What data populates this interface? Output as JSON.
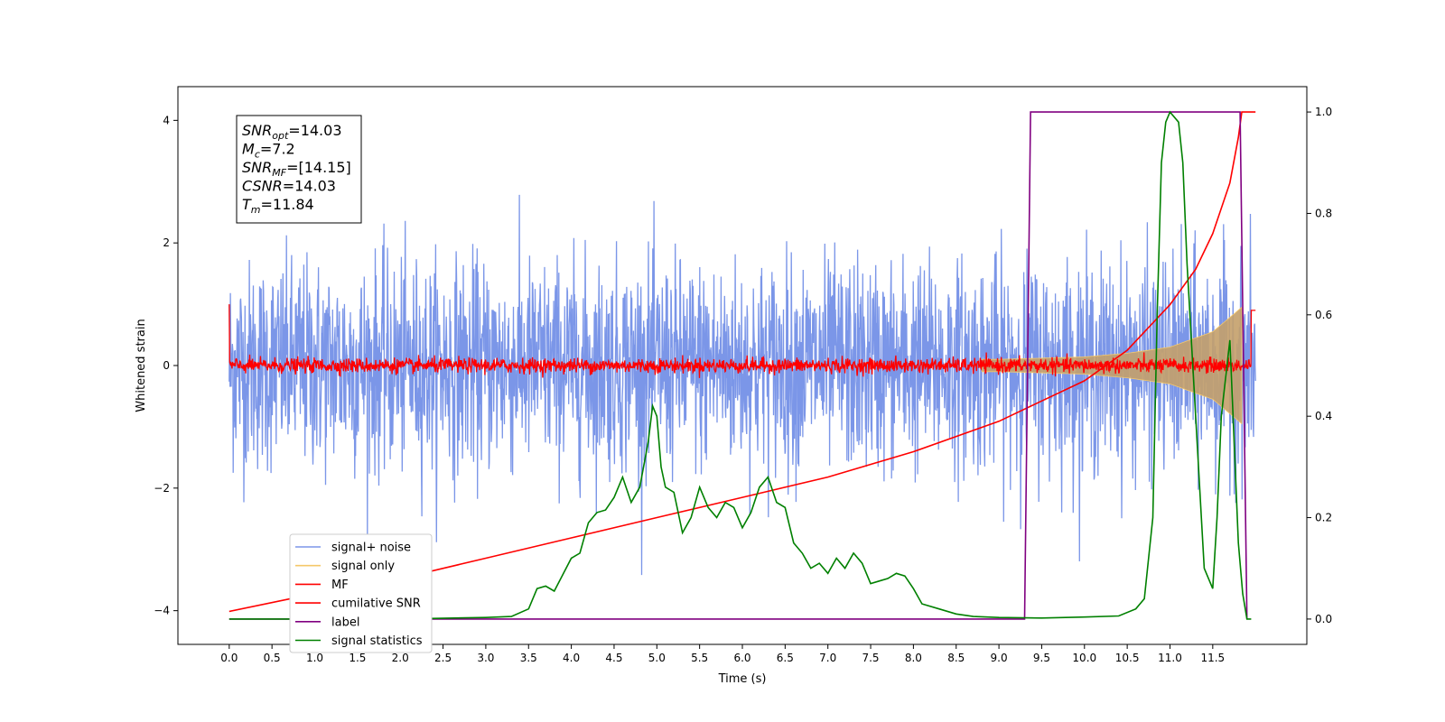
{
  "chart_data": {
    "type": "line",
    "xlabel": "Time (s)",
    "ylabel": "Whitened strain",
    "xlim": [
      -0.6,
      12.6
    ],
    "ylim": [
      -4.55,
      4.55
    ],
    "y2lim": [
      -0.05,
      1.05
    ],
    "xticks": [
      "0.0",
      "0.5",
      "1.0",
      "1.5",
      "2.0",
      "2.5",
      "3.0",
      "3.5",
      "4.0",
      "4.5",
      "5.0",
      "5.5",
      "6.0",
      "6.5",
      "7.0",
      "7.5",
      "8.0",
      "8.5",
      "9.0",
      "9.5",
      "10.0",
      "10.5",
      "11.0",
      "11.5"
    ],
    "yticks": [
      "4",
      "2",
      "0",
      "−2",
      "−4"
    ],
    "y2ticks": [
      "1.0",
      "0.8",
      "0.6",
      "0.4",
      "0.2",
      "0.0"
    ],
    "grid": false,
    "legend_position": "lower-left",
    "annotation": {
      "lines": [
        {
          "sym": "SNR",
          "sub": "opt",
          "val": "=14.03"
        },
        {
          "sym": "M",
          "sub": "c",
          "val": "=7.2"
        },
        {
          "sym": "SNR",
          "sub": "MF",
          "val": "=[14.15]"
        },
        {
          "sym": "CSNR",
          "sub": "",
          "val": "=14.03"
        },
        {
          "sym": "T",
          "sub": "m",
          "val": "=11.84"
        }
      ]
    },
    "series": [
      {
        "name": "signal+ noise",
        "color": "#7b96e8",
        "axis": "left",
        "description_values": {
          "noise_sigma": 0.8,
          "duration": 12.0
        }
      },
      {
        "name": "signal only",
        "color": "#f5c86a",
        "axis": "left",
        "envelope": [
          [
            9.0,
            0.1
          ],
          [
            10.0,
            0.14
          ],
          [
            10.5,
            0.2
          ],
          [
            11.0,
            0.3
          ],
          [
            11.5,
            0.55
          ],
          [
            11.84,
            0.95
          ]
        ]
      },
      {
        "name": "MF",
        "color": "#ff0000",
        "axis": "left",
        "noise_sigma": 0.06
      },
      {
        "name": "cumilative SNR",
        "color": "#ff0000",
        "axis": "right",
        "x": [
          0.0,
          1.0,
          2.0,
          3.0,
          4.0,
          5.0,
          6.0,
          7.0,
          8.0,
          9.0,
          9.5,
          10.0,
          10.5,
          11.0,
          11.3,
          11.5,
          11.7,
          11.8,
          11.84,
          12.0
        ],
        "y": [
          0.015,
          0.05,
          0.08,
          0.12,
          0.16,
          0.2,
          0.24,
          0.28,
          0.33,
          0.39,
          0.43,
          0.47,
          0.53,
          0.62,
          0.69,
          0.76,
          0.86,
          0.95,
          1.0,
          1.0
        ]
      },
      {
        "name": "label",
        "color": "#800080",
        "axis": "right",
        "x": [
          0.0,
          9.3,
          9.37,
          11.82,
          11.9
        ],
        "y": [
          0.0,
          0.0,
          1.0,
          1.0,
          0.0
        ]
      },
      {
        "name": "signal statistics",
        "color": "#008000",
        "axis": "right",
        "x": [
          0.0,
          1.0,
          2.0,
          3.0,
          3.3,
          3.5,
          3.6,
          3.7,
          3.8,
          4.0,
          4.1,
          4.2,
          4.3,
          4.4,
          4.5,
          4.6,
          4.7,
          4.8,
          4.9,
          4.95,
          5.0,
          5.05,
          5.1,
          5.2,
          5.3,
          5.4,
          5.5,
          5.6,
          5.7,
          5.8,
          5.9,
          6.0,
          6.1,
          6.2,
          6.3,
          6.4,
          6.5,
          6.6,
          6.7,
          6.8,
          6.9,
          7.0,
          7.1,
          7.2,
          7.3,
          7.4,
          7.5,
          7.6,
          7.7,
          7.8,
          7.9,
          8.0,
          8.1,
          8.3,
          8.5,
          8.7,
          9.0,
          9.5,
          10.0,
          10.4,
          10.6,
          10.7,
          10.8,
          10.85,
          10.9,
          10.95,
          11.0,
          11.05,
          11.1,
          11.15,
          11.2,
          11.3,
          11.4,
          11.5,
          11.55,
          11.6,
          11.7,
          11.75,
          11.8,
          11.85,
          11.9,
          11.95
        ],
        "y": [
          0.0,
          0.0,
          0.0,
          0.003,
          0.005,
          0.02,
          0.06,
          0.065,
          0.055,
          0.12,
          0.13,
          0.19,
          0.21,
          0.215,
          0.24,
          0.28,
          0.23,
          0.26,
          0.35,
          0.42,
          0.4,
          0.3,
          0.26,
          0.25,
          0.17,
          0.2,
          0.26,
          0.22,
          0.2,
          0.23,
          0.22,
          0.18,
          0.21,
          0.26,
          0.28,
          0.23,
          0.22,
          0.15,
          0.13,
          0.1,
          0.11,
          0.09,
          0.12,
          0.1,
          0.13,
          0.11,
          0.07,
          0.075,
          0.08,
          0.09,
          0.085,
          0.06,
          0.03,
          0.02,
          0.01,
          0.005,
          0.003,
          0.002,
          0.004,
          0.006,
          0.02,
          0.04,
          0.2,
          0.6,
          0.9,
          0.98,
          1.0,
          0.99,
          0.98,
          0.9,
          0.7,
          0.4,
          0.1,
          0.06,
          0.2,
          0.4,
          0.55,
          0.35,
          0.15,
          0.05,
          0.0,
          0.0
        ]
      }
    ]
  }
}
